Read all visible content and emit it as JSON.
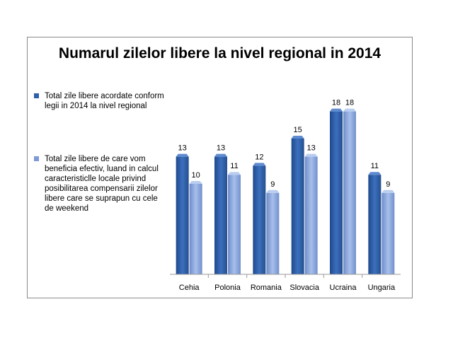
{
  "chart_data": {
    "type": "bar",
    "title": "Numarul zilelor libere la nivel regional in 2014",
    "categories": [
      "Cehia",
      "Polonia",
      "Romania",
      "Slovacia",
      "Ucraina",
      "Ungaria"
    ],
    "series": [
      {
        "name": "Total zile libere acordate conform legii in 2014 la nivel regional",
        "values": [
          13,
          13,
          12,
          15,
          18,
          11
        ],
        "color": "#2f5fa8"
      },
      {
        "name": "Total zile libere de care vom beneficia efectiv, luand in calcul caracteristiclle locale privind posibilitarea compensarii zilelor libere care se suprapun cu cele de weekend",
        "values": [
          10,
          11,
          9,
          13,
          18,
          9
        ],
        "color": "#7d9ad6"
      }
    ],
    "ylim": [
      0,
      20
    ],
    "grid": false,
    "legend_position": "left",
    "data_labels": true
  }
}
